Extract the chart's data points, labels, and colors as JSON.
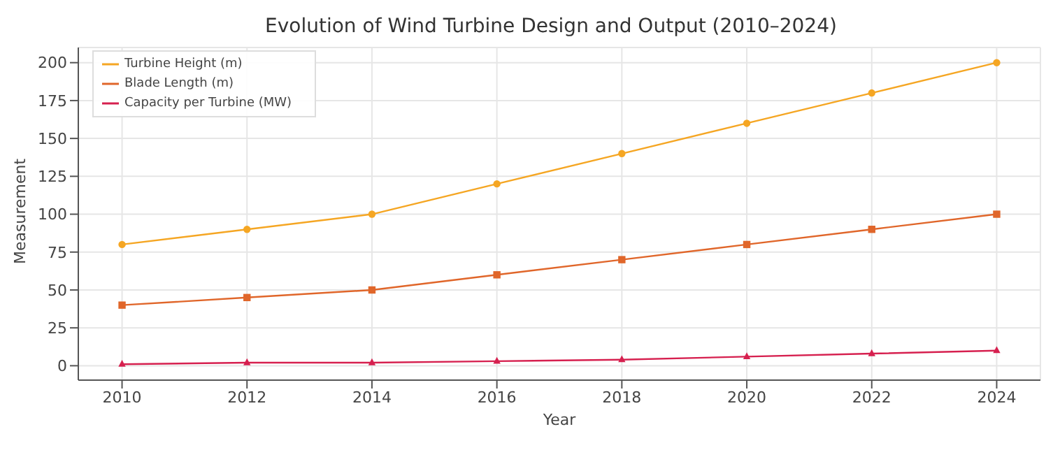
{
  "chart_data": {
    "type": "line",
    "title": "Evolution of Wind Turbine Design and Output (2010–2024)",
    "xlabel": "Year",
    "ylabel": "Measurement",
    "x": [
      2010,
      2012,
      2014,
      2016,
      2018,
      2020,
      2022,
      2024
    ],
    "series": [
      {
        "name": "Turbine Height (m)",
        "color": "#f5a623",
        "marker": "circle",
        "values": [
          80,
          90,
          100,
          120,
          140,
          160,
          180,
          200
        ]
      },
      {
        "name": "Blade Length (m)",
        "color": "#e0662a",
        "marker": "square",
        "values": [
          40,
          45,
          50,
          60,
          70,
          80,
          90,
          100
        ]
      },
      {
        "name": "Capacity per Turbine (MW)",
        "color": "#d6204f",
        "marker": "triangle",
        "values": [
          1,
          2,
          2,
          3,
          4,
          6,
          8,
          10
        ]
      }
    ],
    "xlim": [
      2009.3,
      2024.7
    ],
    "xticks": [
      2010,
      2012,
      2014,
      2016,
      2018,
      2020,
      2022,
      2024
    ],
    "ylim": [
      -9.5,
      210
    ],
    "yticks": [
      0,
      25,
      50,
      75,
      100,
      125,
      150,
      175,
      200
    ],
    "grid": true,
    "legend": "top left",
    "line_style": "solid"
  }
}
